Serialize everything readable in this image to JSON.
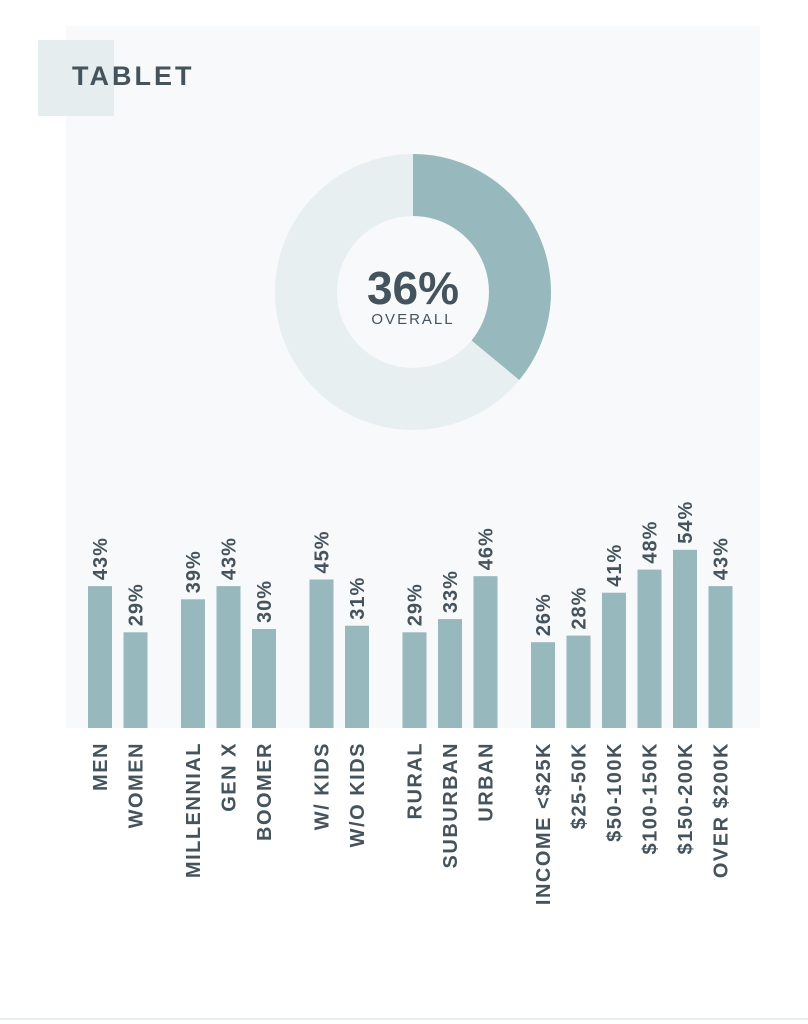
{
  "title": "TABLET",
  "colors": {
    "bar": "#97b8bd",
    "donut_track": "#e8eff1",
    "donut_fill": "#97b8bd",
    "text": "#44535c",
    "panel": "#f7f9fa"
  },
  "chart_data": [
    {
      "type": "pie",
      "donut": true,
      "center_value": "36%",
      "center_label": "OVERALL",
      "values": [
        36,
        64
      ]
    },
    {
      "type": "bar",
      "groups": [
        {
          "categories": [
            "MEN",
            "WOMEN"
          ],
          "values": [
            43,
            29
          ],
          "labels": [
            "43%",
            "29%"
          ]
        },
        {
          "categories": [
            "MILLENNIAL",
            "GEN X",
            "BOOMER"
          ],
          "values": [
            39,
            43,
            30
          ],
          "labels": [
            "39%",
            "43%",
            "30%"
          ]
        },
        {
          "categories": [
            "W/ KIDS",
            "W/O KIDS"
          ],
          "values": [
            45,
            31
          ],
          "labels": [
            "45%",
            "31%"
          ]
        },
        {
          "categories": [
            "RURAL",
            "SUBURBAN",
            "URBAN"
          ],
          "values": [
            29,
            33,
            46
          ],
          "labels": [
            "29%",
            "33%",
            "46%"
          ]
        },
        {
          "categories": [
            "INCOME <$25K",
            "$25-50K",
            "$50-100K",
            "$100-150K",
            "$150-200K",
            "OVER $200K"
          ],
          "values": [
            26,
            28,
            41,
            48,
            54,
            43
          ],
          "labels": [
            "26%",
            "28%",
            "41%",
            "48%",
            "54%",
            "43%"
          ]
        }
      ],
      "ylim": [
        0,
        100
      ]
    }
  ]
}
